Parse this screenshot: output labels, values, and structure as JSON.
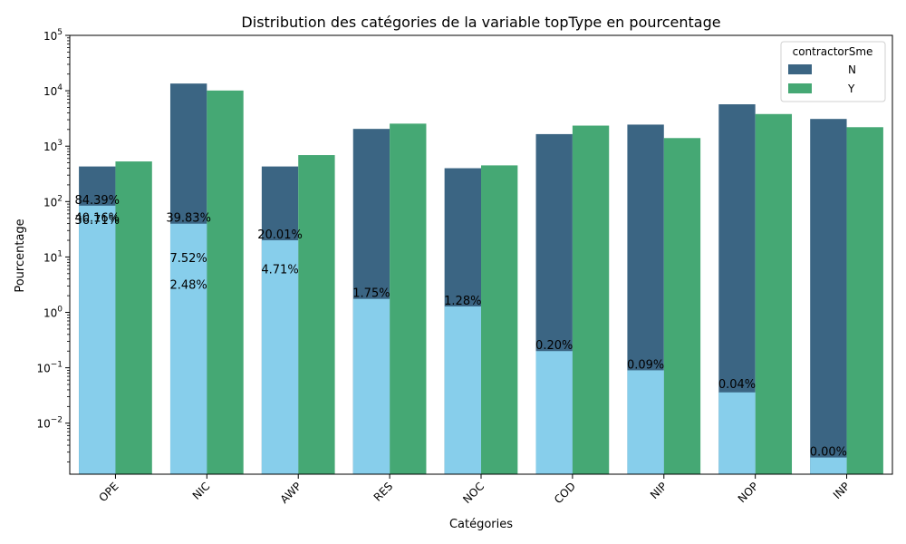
{
  "chart_data": {
    "type": "bar",
    "title": "Distribution des catégories de la variable topType en pourcentage",
    "xlabel": "Catégories",
    "ylabel": "Pourcentage",
    "yscale": "log",
    "ylim": [
      0.0012,
      100000
    ],
    "yticks": [
      {
        "value": 0.01,
        "base": "10",
        "exp": "−2"
      },
      {
        "value": 0.1,
        "base": "10",
        "exp": "−1"
      },
      {
        "value": 1,
        "base": "10",
        "exp": "0"
      },
      {
        "value": 10,
        "base": "10",
        "exp": "1"
      },
      {
        "value": 100,
        "base": "10",
        "exp": "2"
      },
      {
        "value": 1000,
        "base": "10",
        "exp": "3"
      },
      {
        "value": 10000,
        "base": "10",
        "exp": "4"
      },
      {
        "value": 100000,
        "base": "10",
        "exp": "5"
      }
    ],
    "categories": [
      "OPE",
      "NIC",
      "AWP",
      "RES",
      "NOC",
      "COD",
      "NIP",
      "NOP",
      "INP"
    ],
    "legend": {
      "title": "contractorSme",
      "position": "top-right",
      "entries": [
        {
          "name": "N",
          "color": "#3b6583"
        },
        {
          "name": "Y",
          "color": "#45a874"
        }
      ]
    },
    "series": [
      {
        "name": "N",
        "color": "#3b6583",
        "values": [
          430,
          13500,
          430,
          2050,
          400,
          1650,
          2450,
          5700,
          3100
        ]
      },
      {
        "name": "Y",
        "color": "#45a874",
        "values": [
          530,
          10100,
          690,
          2550,
          450,
          2350,
          1400,
          3800,
          2200
        ]
      }
    ],
    "percentage_bars": {
      "color": "#87ceeb",
      "values": [
        84.39,
        39.83,
        20.01,
        1.75,
        1.28,
        0.2,
        0.09,
        0.036,
        0.0024
      ]
    },
    "annotations": [
      {
        "category": "OPE",
        "text": "84.39%",
        "value": 84.39
      },
      {
        "category": "OPE",
        "text": "40.16%",
        "value": 40.16
      },
      {
        "category": "OPE",
        "text": "36.71%",
        "value": 36.71
      },
      {
        "category": "NIC",
        "text": "39.83%",
        "value": 39.83
      },
      {
        "category": "NIC",
        "text": "7.52%",
        "value": 7.52
      },
      {
        "category": "NIC",
        "text": "2.48%",
        "value": 2.48
      },
      {
        "category": "AWP",
        "text": "20.01%",
        "value": 20.01
      },
      {
        "category": "AWP",
        "text": "4.71%",
        "value": 4.71
      },
      {
        "category": "RES",
        "text": "1.75%",
        "value": 1.75
      },
      {
        "category": "NOC",
        "text": "1.28%",
        "value": 1.28
      },
      {
        "category": "COD",
        "text": "0.20%",
        "value": 0.2
      },
      {
        "category": "NIP",
        "text": "0.09%",
        "value": 0.09
      },
      {
        "category": "NOP",
        "text": "0.04%",
        "value": 0.04
      },
      {
        "category": "INP",
        "text": "0.00%",
        "value": 0.0024
      }
    ]
  }
}
